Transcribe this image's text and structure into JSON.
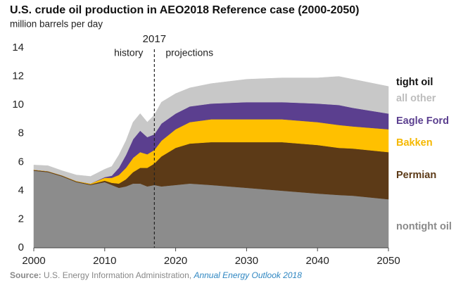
{
  "chart_data": {
    "type": "stacked_area",
    "title": "U.S. crude oil production in AEO2018 Reference case (2000-2050)",
    "subtitle": "million barrels per day",
    "group_label": "tight oil",
    "divider": {
      "x": 2017,
      "left": "history",
      "right": "projections"
    },
    "source": {
      "prefix": "Source:",
      "text": " U.S. Energy Information Administration, ",
      "link": "Annual Energy Outlook 2018"
    },
    "x": [
      2000,
      2002,
      2004,
      2006,
      2008,
      2010,
      2011,
      2012,
      2013,
      2014,
      2015,
      2016,
      2017,
      2018,
      2020,
      2022,
      2025,
      2030,
      2035,
      2040,
      2043,
      2045,
      2050
    ],
    "xlim": [
      2000,
      2050
    ],
    "xticks": [
      2000,
      2010,
      2020,
      2030,
      2040,
      2050
    ],
    "ylim": [
      0,
      14
    ],
    "yticks": [
      0,
      2,
      4,
      6,
      8,
      10,
      12,
      14
    ],
    "grid": false,
    "series": [
      {
        "name": "nontight oil",
        "color": "#8c8c8c",
        "label_color": "#8a8a8a",
        "values": [
          5.4,
          5.3,
          5.0,
          4.6,
          4.4,
          4.6,
          4.4,
          4.2,
          4.3,
          4.5,
          4.5,
          4.3,
          4.4,
          4.3,
          4.4,
          4.5,
          4.4,
          4.2,
          4.0,
          3.8,
          3.7,
          3.65,
          3.4
        ]
      },
      {
        "name": "Permian",
        "color": "#5c3a17",
        "label_color": "#5c3a17",
        "values": [
          0.05,
          0.05,
          0.05,
          0.05,
          0.05,
          0.1,
          0.15,
          0.3,
          0.5,
          0.8,
          1.1,
          1.3,
          1.5,
          2.1,
          2.6,
          2.8,
          3.0,
          3.2,
          3.4,
          3.4,
          3.3,
          3.3,
          3.3
        ]
      },
      {
        "name": "Bakken",
        "color": "#ffc000",
        "label_color": "#f5b800",
        "values": [
          0.02,
          0.02,
          0.02,
          0.03,
          0.05,
          0.2,
          0.35,
          0.6,
          0.8,
          1.0,
          1.1,
          0.95,
          0.95,
          1.1,
          1.3,
          1.5,
          1.6,
          1.6,
          1.6,
          1.6,
          1.6,
          1.55,
          1.6
        ]
      },
      {
        "name": "Eagle Ford",
        "color": "#5b3f8f",
        "label_color": "#5b3f8f",
        "values": [
          0,
          0,
          0,
          0,
          0,
          0.05,
          0.15,
          0.5,
          0.9,
          1.3,
          1.5,
          1.2,
          1.1,
          1.2,
          1.1,
          1.1,
          1.1,
          1.2,
          1.2,
          1.3,
          1.4,
          1.3,
          1.1
        ]
      },
      {
        "name": "all other",
        "color": "#c8c8c8",
        "label_color": "#bdbdbd",
        "values": [
          0.33,
          0.38,
          0.33,
          0.42,
          0.5,
          0.55,
          0.65,
          0.9,
          1.0,
          1.2,
          1.2,
          1.05,
          1.35,
          1.5,
          1.4,
          1.3,
          1.4,
          1.6,
          1.7,
          1.8,
          2.0,
          2.0,
          1.9
        ]
      }
    ]
  }
}
